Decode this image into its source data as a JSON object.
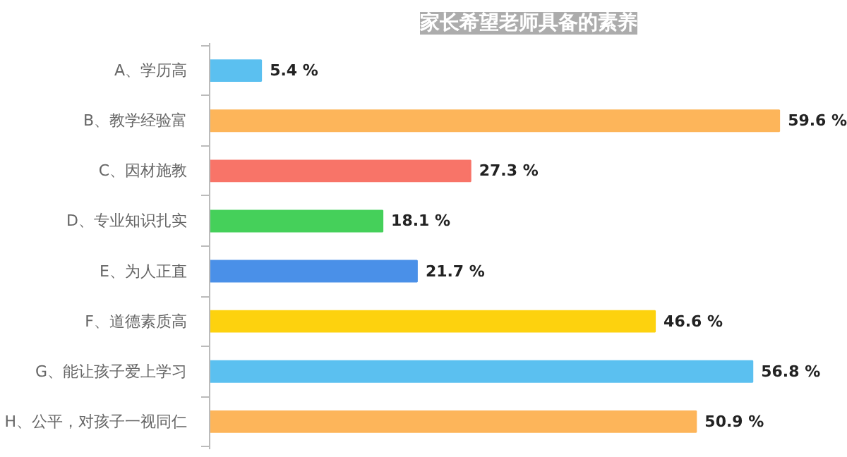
{
  "chart_data": {
    "type": "bar",
    "orientation": "horizontal",
    "title": "家长希望老师具备的素养",
    "categories": [
      "A、学历高",
      "B、教学经验富",
      "C、因材施教",
      "D、专业知识扎实",
      "E、为人正直",
      "F、道德素质高",
      "G、能让孩子爱上学习",
      "H、公平，对孩子一视同仁"
    ],
    "values": [
      5.4,
      59.6,
      27.3,
      18.1,
      21.7,
      46.6,
      56.8,
      50.9
    ],
    "value_labels": [
      "5.4 %",
      "59.6 %",
      "27.3 %",
      "18.1 %",
      "21.7 %",
      "46.6 %",
      "56.8 %",
      "50.9 %"
    ],
    "colors": [
      "#5bc0f0",
      "#fdb55a",
      "#f87468",
      "#45d05a",
      "#4a90e8",
      "#fdd20e",
      "#5bc0f0",
      "#fdb55a"
    ],
    "grid": false
  }
}
